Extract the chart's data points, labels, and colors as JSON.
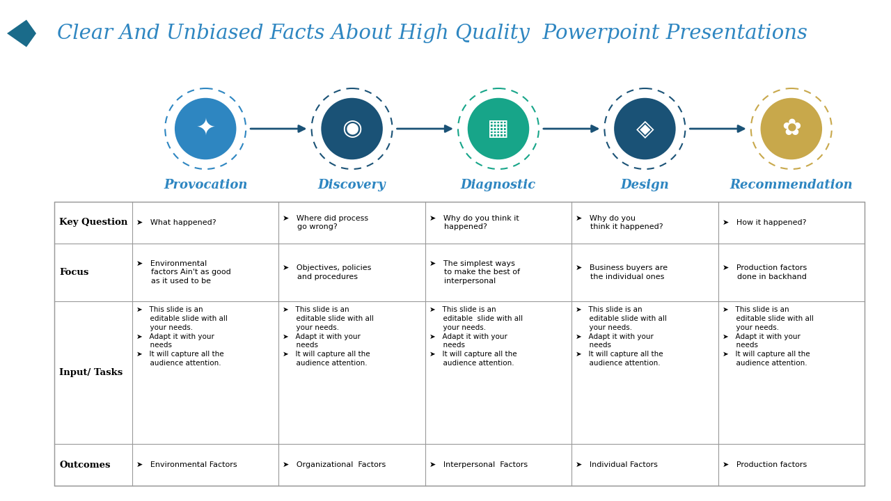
{
  "title": "Clear And Unbiased Facts About High Quality  Powerpoint Presentations",
  "title_color": "#2E86C1",
  "bg_color": "#ffffff",
  "stages": [
    "Provocation",
    "Discovery",
    "Diagnostic",
    "Design",
    "Recommendation"
  ],
  "circle_colors": [
    "#2E86C1",
    "#1A5276",
    "#17A589",
    "#1A5276",
    "#C8A84B"
  ],
  "dashed_colors": [
    "#2E86C1",
    "#1A5276",
    "#17A589",
    "#1A5276",
    "#C8A84B"
  ],
  "row_labels": [
    "Key Question",
    "Focus",
    "Input/ Tasks",
    "Outcomes"
  ],
  "table_data": {
    "Key Question": [
      "➤   What happened?",
      "➤   Where did process\n      go wrong?",
      "➤   Why do you think it\n      happened?",
      "➤   Why do you\n      think it happened?",
      "➤   How it happened?"
    ],
    "Focus": [
      "➤   Environmental\n      factors Ain't as good\n      as it used to be",
      "➤   Objectives, policies\n      and procedures",
      "➤   The simplest ways\n      to make the best of\n      interpersonal",
      "➤   Business buyers are\n      the individual ones",
      "➤   Production factors\n      done in backhand"
    ],
    "Input/ Tasks": [
      "➤   This slide is an\n      editable slide with all\n      your needs.\n➤   Adapt it with your\n      needs\n➤   It will capture all the\n      audience attention.",
      "➤   This slide is an\n      editable slide with all\n      your needs.\n➤   Adapt it with your\n      needs\n➤   It will capture all the\n      audience attention.",
      "➤   This slide is an\n      editable  slide with all\n      your needs.\n➤   Adapt it with your\n      needs\n➤   It will capture all the\n      audience attention.",
      "➤   This slide is an\n      editable slide with all\n      your needs.\n➤   Adapt it with your\n      needs\n➤   It will capture all the\n      audience attention.",
      "➤   This slide is an\n      editable slide with all\n      your needs.\n➤   Adapt it with your\n      needs\n➤   It will capture all the\n      audience attention."
    ],
    "Outcomes": [
      "➤   Environmental Factors",
      "➤   Organizational  Factors",
      "➤   Interpersonal  Factors",
      "➤   Individual Factors",
      "➤   Production factors"
    ]
  },
  "arrow_color": "#1A5276",
  "table_border_color": "#999999",
  "header_text_color": "#2E86C1",
  "chevron_color": "#1A6B8A"
}
